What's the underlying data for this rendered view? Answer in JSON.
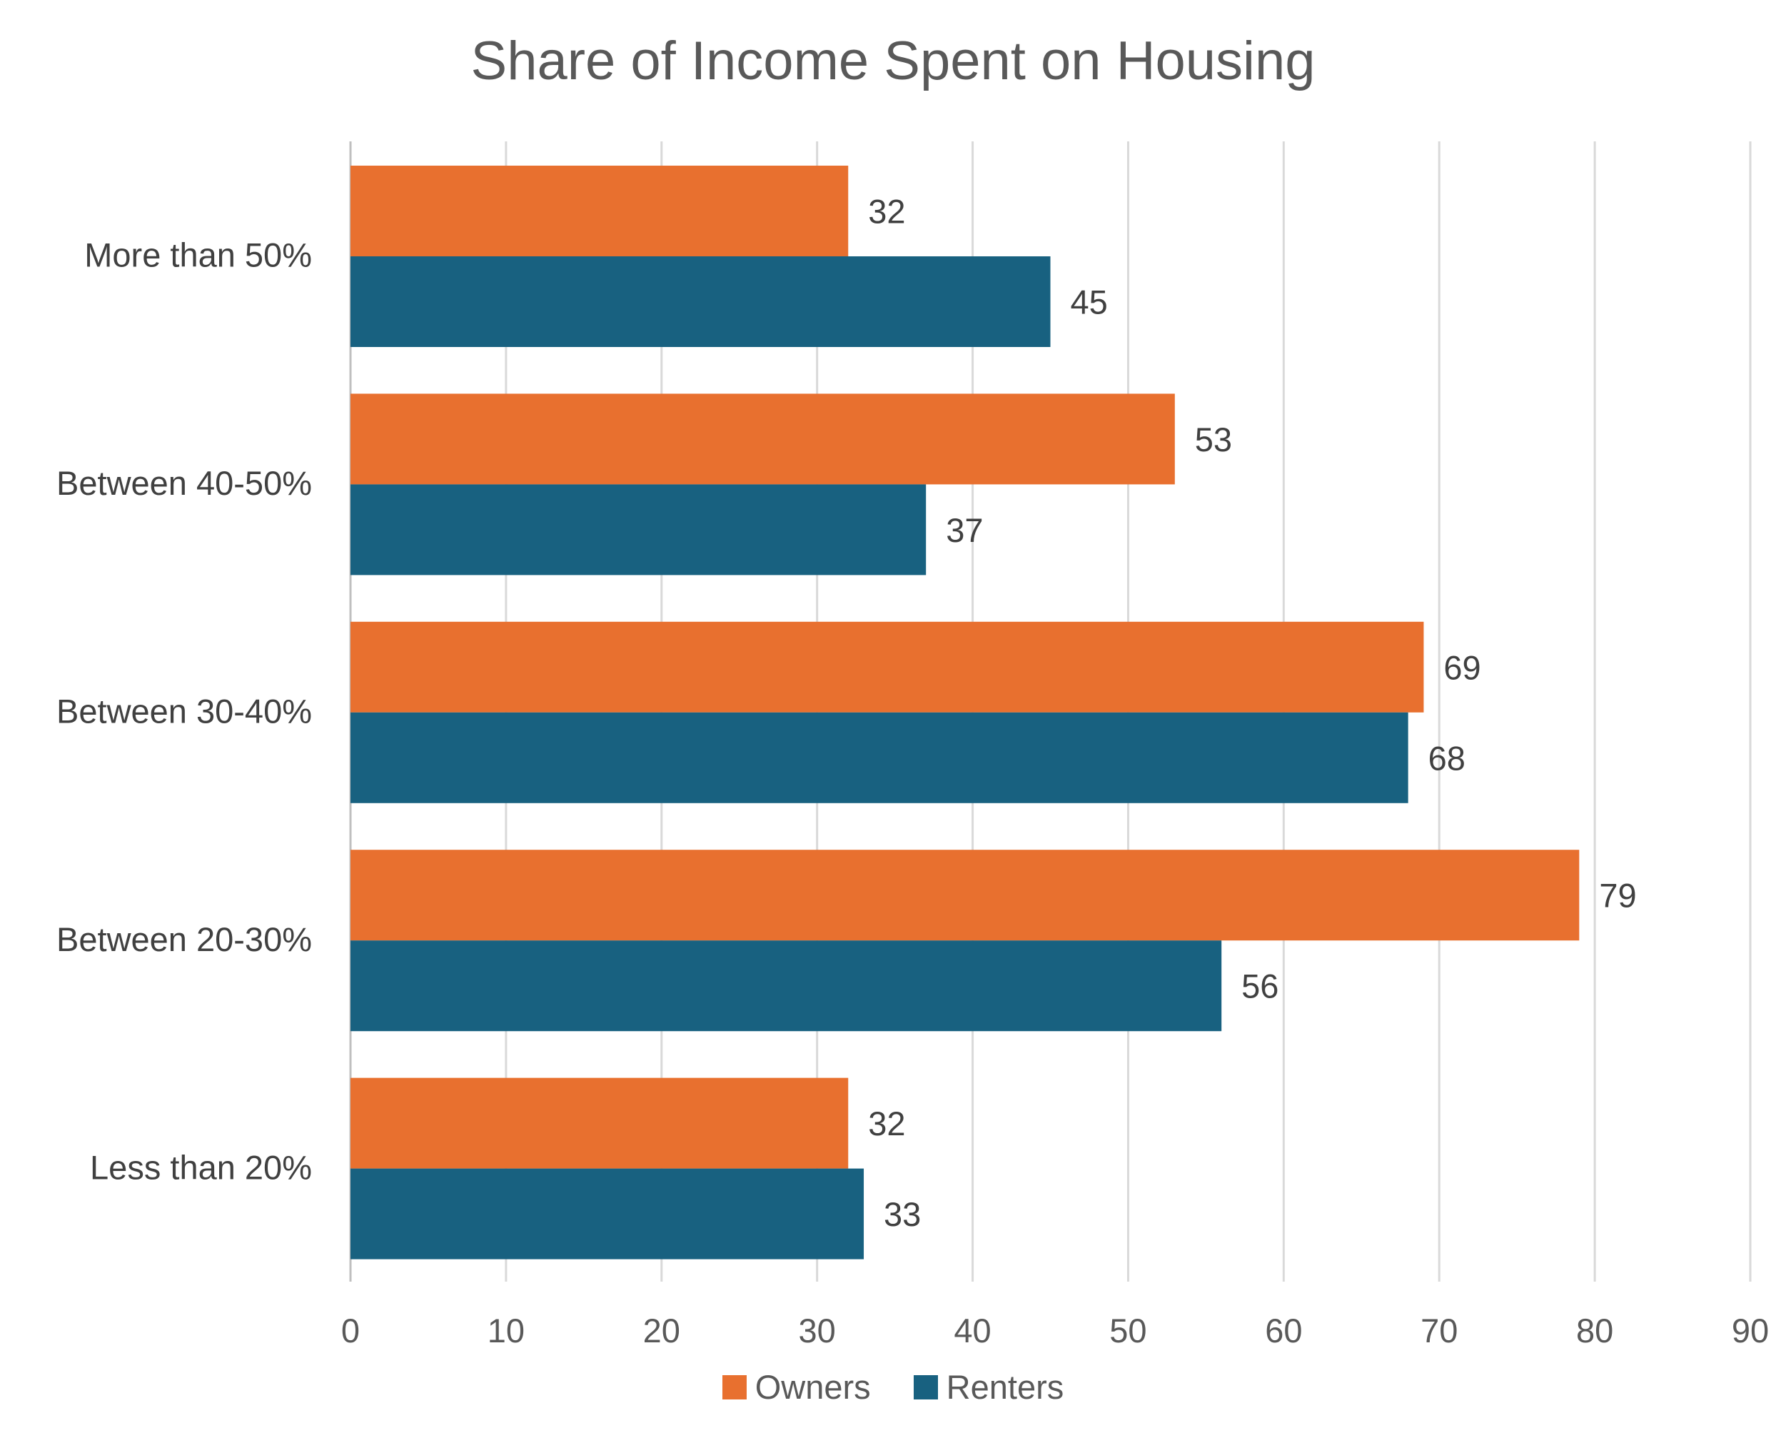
{
  "colors": {
    "owners": "#E8702F",
    "renters": "#186180",
    "grid": "#D9D9D9",
    "axis": "#BFBFBF"
  },
  "chart_data": {
    "type": "bar",
    "orientation": "horizontal",
    "title": "Share of Income Spent on Housing",
    "categories": [
      "More than 50%",
      "Between 40-50%",
      "Between 30-40%",
      "Between 20-30%",
      "Less than 20%"
    ],
    "series": [
      {
        "name": "Owners",
        "values": [
          32,
          53,
          69,
          79,
          32
        ]
      },
      {
        "name": "Renters",
        "values": [
          45,
          37,
          68,
          56,
          33
        ]
      }
    ],
    "xlim": [
      0,
      90
    ],
    "xticks": [
      "0",
      "10",
      "20",
      "30",
      "40",
      "50",
      "60",
      "70",
      "80",
      "90"
    ],
    "grid": true,
    "data_labels": true,
    "legend_position": "bottom"
  }
}
